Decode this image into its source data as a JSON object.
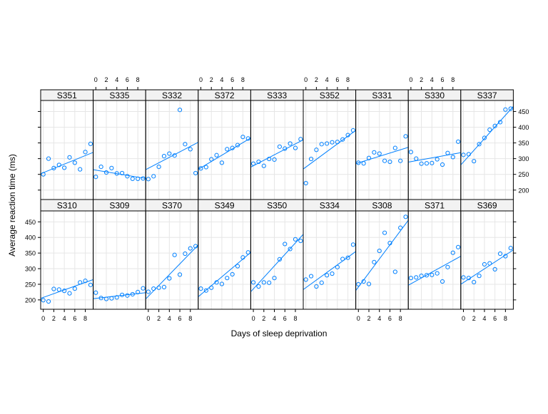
{
  "chart_data": {
    "type": "scatter",
    "xlabel": "Days of sleep deprivation",
    "ylabel": "Average reaction time (ms)",
    "xlim": [
      -0.5,
      9.5
    ],
    "ylim": [
      170,
      485
    ],
    "x_ticks": [
      0,
      2,
      4,
      6,
      8
    ],
    "y_ticks": [
      200,
      250,
      300,
      350,
      400,
      450
    ],
    "grid": true,
    "colors": {
      "points": "#0080ff",
      "lines": "#0080ff",
      "strip": "#f2f2f2",
      "grid": "#e6e6e6",
      "frame": "#000000"
    },
    "days": [
      0,
      1,
      2,
      3,
      4,
      5,
      6,
      7,
      8,
      9
    ],
    "panels": [
      {
        "subject": "S351",
        "row": 2,
        "values": [
          250,
          300,
          270,
          280,
          271,
          304,
          287,
          266,
          321,
          347
        ],
        "fit": [
          252,
          320
        ]
      },
      {
        "subject": "S335",
        "row": 2,
        "values": [
          242,
          274,
          256,
          270,
          253,
          254,
          244,
          236,
          236,
          237
        ],
        "fit": [
          265,
          237
        ]
      },
      {
        "subject": "S332",
        "row": 2,
        "values": [
          235,
          244,
          274,
          308,
          316,
          310,
          455,
          346,
          330,
          254
        ],
        "fit": [
          265,
          352
        ]
      },
      {
        "subject": "S372",
        "row": 2,
        "values": [
          269,
          273,
          298,
          311,
          287,
          330,
          334,
          343,
          369,
          364
        ],
        "fit": [
          266,
          366
        ]
      },
      {
        "subject": "S333",
        "row": 2,
        "values": [
          284,
          290,
          277,
          299,
          297,
          338,
          332,
          348,
          334,
          362
        ],
        "fit": [
          273,
          360
        ]
      },
      {
        "subject": "S352",
        "row": 2,
        "values": [
          222,
          299,
          328,
          346,
          348,
          352,
          353,
          361,
          375,
          390
        ],
        "fit": [
          267,
          390
        ]
      },
      {
        "subject": "S331",
        "row": 2,
        "values": [
          287,
          285,
          302,
          320,
          316,
          293,
          290,
          334,
          293,
          371
        ],
        "fit": [
          284,
          336
        ]
      },
      {
        "subject": "S330",
        "row": 2,
        "values": [
          321,
          300,
          284,
          285,
          286,
          298,
          281,
          318,
          305,
          354
        ],
        "fit": [
          289,
          319
        ]
      },
      {
        "subject": "S337",
        "row": 2,
        "values": [
          312,
          314,
          292,
          346,
          366,
          392,
          404,
          416,
          456,
          459
        ],
        "fit": [
          280,
          466
        ]
      },
      {
        "subject": "S310",
        "row": 1,
        "values": [
          199,
          195,
          235,
          233,
          229,
          221,
          236,
          256,
          261,
          248
        ],
        "fit": [
          205,
          265
        ]
      },
      {
        "subject": "S309",
        "row": 1,
        "values": [
          223,
          206,
          203,
          205,
          208,
          216,
          214,
          218,
          225,
          237
        ],
        "fit": [
          204,
          223
        ]
      },
      {
        "subject": "S370",
        "row": 1,
        "values": [
          226,
          236,
          239,
          241,
          269,
          344,
          281,
          348,
          365,
          372
        ],
        "fit": [
          203,
          376
        ]
      },
      {
        "subject": "S349",
        "row": 1,
        "values": [
          236,
          230,
          239,
          256,
          251,
          270,
          282,
          308,
          336,
          352
        ],
        "fit": [
          210,
          352
        ]
      },
      {
        "subject": "S350",
        "row": 1,
        "values": [
          256,
          243,
          256,
          255,
          270,
          330,
          379,
          363,
          394,
          389
        ],
        "fit": [
          226,
          410
        ]
      },
      {
        "subject": "S334",
        "row": 1,
        "values": [
          265,
          276,
          243,
          255,
          279,
          284,
          305,
          331,
          335,
          377
        ],
        "fit": [
          233,
          355
        ]
      },
      {
        "subject": "S308",
        "row": 1,
        "values": [
          250,
          259,
          251,
          321,
          357,
          415,
          382,
          290,
          431,
          466
        ],
        "fit": [
          230,
          455
        ]
      },
      {
        "subject": "S371",
        "row": 1,
        "values": [
          270,
          272,
          277,
          279,
          280,
          285,
          259,
          305,
          351,
          369
        ],
        "fit": [
          247,
          340
        ]
      },
      {
        "subject": "S369",
        "row": 1,
        "values": [
          272,
          270,
          257,
          277,
          314,
          317,
          298,
          348,
          340,
          366
        ],
        "fit": [
          250,
          360
        ]
      }
    ]
  }
}
